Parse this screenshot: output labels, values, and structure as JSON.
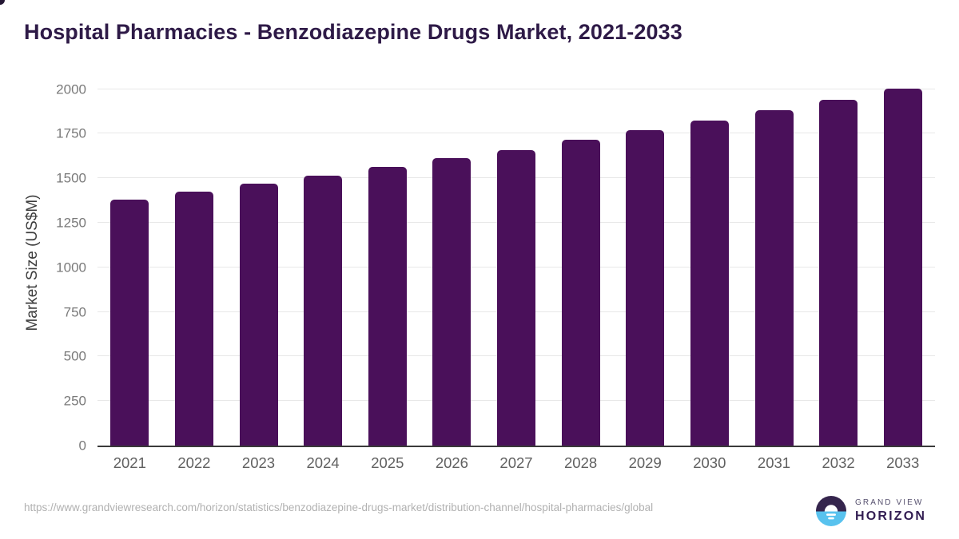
{
  "page": {
    "title": "Hospital Pharmacies - Benzodiazepine Drugs Market, 2021-2033"
  },
  "chart_data": {
    "type": "bar",
    "title": "Hospital Pharmacies - Benzodiazepine Drugs Market, 2021-2033",
    "categories": [
      "2021",
      "2022",
      "2023",
      "2024",
      "2025",
      "2026",
      "2027",
      "2028",
      "2029",
      "2030",
      "2031",
      "2032",
      "2033"
    ],
    "values": [
      1380,
      1425,
      1470,
      1515,
      1565,
      1615,
      1660,
      1715,
      1770,
      1825,
      1880,
      1940,
      2005
    ],
    "xlabel": "",
    "ylabel": "Market Size (US$M)",
    "ylim": [
      0,
      2052
    ],
    "yticks": [
      0,
      250,
      500,
      750,
      1000,
      1250,
      1500,
      1750,
      2000
    ],
    "grid": true,
    "legend_position": "none",
    "bar_color": "#4a105a"
  },
  "footer": {
    "source_url": "https://www.grandviewresearch.com/horizon/statistics/benzodiazepine-drugs-market/distribution-channel/hospital-pharmacies/global",
    "logo": {
      "name_top": "GRAND VIEW",
      "name_bottom": "HORIZON",
      "icon": "sunrise-horizon-icon",
      "icon_purple": "#35254d",
      "icon_blue": "#58c2ee"
    }
  },
  "colors": {
    "background": "#ffffff",
    "title_text": "#2e1a47",
    "bar": "#4a105a",
    "gridline": "#e8e8e8",
    "axis_line": "#3a3a3a",
    "y_tick_label": "#7a7a7a",
    "x_tick_label": "#606060",
    "y_axis_title": "#3d3d3d",
    "url_text": "#b1b1b1"
  }
}
